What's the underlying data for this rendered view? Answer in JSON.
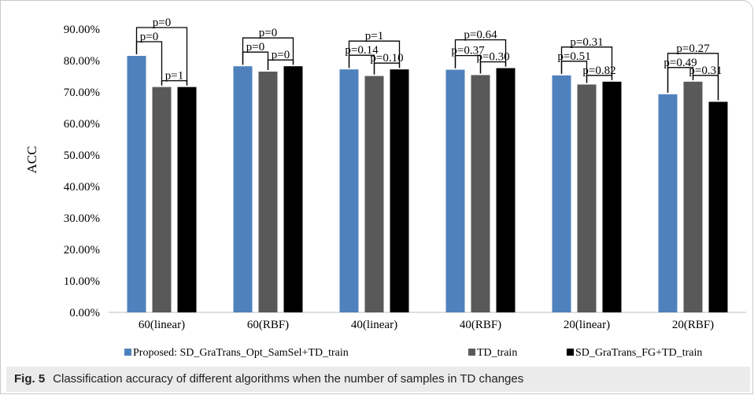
{
  "chart_data": {
    "type": "bar",
    "categories": [
      "60(linear)",
      "60(RBF)",
      "40(linear)",
      "40(RBF)",
      "20(linear)",
      "20(RBF)"
    ],
    "series": [
      {
        "name": "Proposed: SD_GraTrans_Opt_SamSel+TD_train",
        "color": "#4f81bd",
        "values": [
          81.5,
          78.2,
          77.2,
          77.1,
          75.3,
          69.3
        ]
      },
      {
        "name": "TD_train",
        "color": "#595959",
        "values": [
          71.6,
          76.5,
          75.1,
          75.4,
          72.4,
          73.3
        ]
      },
      {
        "name": "SD_GraTrans_FG+TD_train",
        "color": "#000000",
        "values": [
          71.6,
          78.2,
          77.2,
          77.6,
          73.3,
          66.9
        ]
      }
    ],
    "ylabel": "ACC",
    "ylim": [
      0,
      90
    ],
    "yticks": [
      "0.00%",
      "10.00%",
      "20.00%",
      "30.00%",
      "40.00%",
      "50.00%",
      "60.00%",
      "70.00%",
      "80.00%",
      "90.00%"
    ],
    "yticks_values": [
      0,
      10,
      20,
      30,
      40,
      50,
      60,
      70,
      80,
      90
    ],
    "legend_position": "bottom",
    "annotations": [
      {
        "group": 0,
        "pairs": [
          {
            "from": 0,
            "to": 2,
            "label": "p=0"
          },
          {
            "from": 0,
            "to": 1,
            "label": "p=0"
          },
          {
            "from": 1,
            "to": 2,
            "label": "p=1"
          }
        ]
      },
      {
        "group": 1,
        "pairs": [
          {
            "from": 0,
            "to": 2,
            "label": "p=0"
          },
          {
            "from": 0,
            "to": 1,
            "label": "p=0"
          },
          {
            "from": 1,
            "to": 2,
            "label": "p=0"
          }
        ]
      },
      {
        "group": 2,
        "pairs": [
          {
            "from": 0,
            "to": 2,
            "label": "p=1"
          },
          {
            "from": 0,
            "to": 1,
            "label": "p=0.14"
          },
          {
            "from": 1,
            "to": 2,
            "label": "p=0.10"
          }
        ]
      },
      {
        "group": 3,
        "pairs": [
          {
            "from": 0,
            "to": 2,
            "label": "p=0.64"
          },
          {
            "from": 0,
            "to": 1,
            "label": "p=0.37"
          },
          {
            "from": 1,
            "to": 2,
            "label": "p=0.30"
          }
        ]
      },
      {
        "group": 4,
        "pairs": [
          {
            "from": 0,
            "to": 2,
            "label": "p=0.31"
          },
          {
            "from": 0,
            "to": 1,
            "label": "p=0.51"
          },
          {
            "from": 1,
            "to": 2,
            "label": "p=0.82"
          }
        ]
      },
      {
        "group": 5,
        "pairs": [
          {
            "from": 0,
            "to": 2,
            "label": "p=0.27"
          },
          {
            "from": 0,
            "to": 1,
            "label": "p=0.49"
          },
          {
            "from": 1,
            "to": 2,
            "label": "p=0.31"
          }
        ]
      }
    ]
  },
  "caption": {
    "label": "Fig. 5",
    "text": "Classification accuracy of different algorithms when the number of samples in TD changes"
  }
}
